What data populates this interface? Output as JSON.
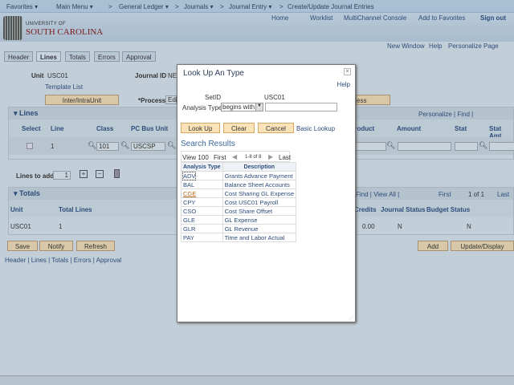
{
  "nav": {
    "favorites": "Favorites ▾",
    "main_menu": "Main Menu ▾",
    "crumbs": [
      "General Ledger ▾",
      "Journals ▾",
      "Journal Entry ▾",
      "Create/Update Journal Entries"
    ],
    "sep": ">"
  },
  "header": {
    "links": [
      "Home",
      "Worklist",
      "MultiChannel Console",
      "Add to Favorites",
      "Sign out"
    ],
    "logo_top": "UNIVERSITY OF",
    "logo_main": "SOUTH CAROLINA"
  },
  "toolbar": {
    "links": [
      "New Window",
      "Help",
      "Personalize Page"
    ]
  },
  "tabs": [
    "Header",
    "Lines",
    "Totals",
    "Errors",
    "Approval"
  ],
  "form": {
    "unit_label": "Unit",
    "unit_value": "USC01",
    "journal_id_label": "Journal ID",
    "journal_id_value": "NE",
    "template_list": "Template List",
    "interunit_btn": "Inter/IntraUnit",
    "process_label": "*Process",
    "process_value": "Edi",
    "process_btn_tail": "ess"
  },
  "lines": {
    "title": "Lines",
    "tools": "Personalize | Find |",
    "columns": [
      "Select",
      "Line",
      "Class",
      "PC Bus Unit",
      "Product",
      "Amount",
      "Stat",
      "Stat Amt"
    ],
    "row": {
      "line": "1",
      "class": "101",
      "pc_bus_unit": "USCSP"
    },
    "lines_to_add_label": "Lines to add",
    "lines_to_add_value": "1"
  },
  "totals": {
    "title": "Totals",
    "tools": "Find | View All |",
    "pager": "First",
    "count": "1 of 1",
    "last": "Last",
    "columns": [
      "Unit",
      "Total Lines",
      "Credits",
      "Journal Status",
      "Budget Status"
    ],
    "row": {
      "unit": "USC01",
      "total_lines": "1",
      "credits": "0.00",
      "journal_status": "N",
      "budget_status": "N"
    }
  },
  "actions": {
    "save": "Save",
    "notify": "Notify",
    "refresh": "Refresh",
    "add": "Add",
    "update": "Update/Display"
  },
  "footer_links": [
    "Header",
    "Lines",
    "Totals",
    "Errors",
    "Approval"
  ],
  "modal": {
    "title": "Look Up An Type",
    "help": "Help",
    "setid_label": "SetID",
    "setid_value": "USC01",
    "type_label": "Analysis Type",
    "operator": "begins with",
    "value": "",
    "lookup": "Look Up",
    "clear": "Clear",
    "cancel": "Cancel",
    "basic": "Basic Lookup",
    "results_title": "Search Results",
    "view": "View 100",
    "first": "First",
    "range": "1-8 of 8",
    "last": "Last",
    "columns": [
      "Analysis Type",
      "Description"
    ],
    "rows": [
      {
        "code": "ADV",
        "desc": "Grants Advance Payment"
      },
      {
        "code": "BAL",
        "desc": "Balance Sheet Accounts"
      },
      {
        "code": "CGE",
        "desc": "Cost Sharing GL Expense"
      },
      {
        "code": "CPY",
        "desc": "Cost USC01 Payroll"
      },
      {
        "code": "CSO",
        "desc": "Cost Share Offset"
      },
      {
        "code": "GLE",
        "desc": "GL Expense"
      },
      {
        "code": "GLR",
        "desc": "GL Revenue"
      },
      {
        "code": "PAY",
        "desc": "Time and Labor Actual"
      }
    ]
  },
  "colors": {
    "accent": "#2d4c7a",
    "brand": "#7a1c1c",
    "button": "#fbe3b8",
    "visited": "#b5651d"
  }
}
